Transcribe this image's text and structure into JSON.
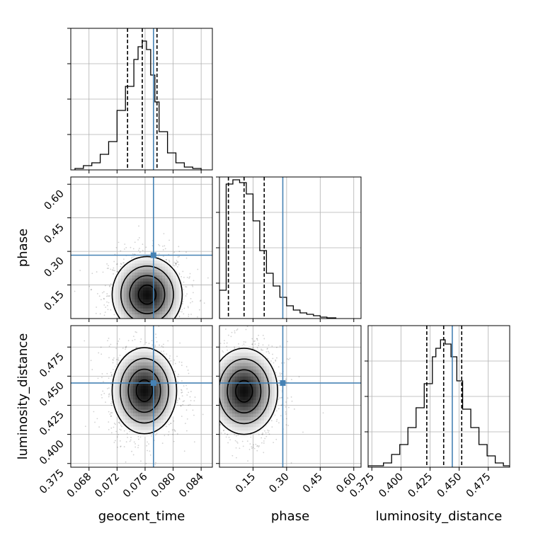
{
  "chart_data": {
    "type": "corner",
    "parameters": [
      "geocent_time",
      "phase",
      "luminosity_distance"
    ],
    "truths": {
      "geocent_time": 0.0772,
      "phase": 0.283,
      "luminosity_distance": 0.4441
    },
    "colors": {
      "truth": "#4682b4",
      "hist": "#000000",
      "grid": "#b0b0b0",
      "quantile": "#000000"
    },
    "grid": true,
    "panels": [
      {
        "id": "hist-geocent_time",
        "type": "histogram",
        "param": "geocent_time",
        "xlim": [
          0.0654,
          0.0856
        ],
        "ylim": [
          0,
          1
        ],
        "bin_edges": [
          0.066,
          0.0672,
          0.0684,
          0.0696,
          0.0708,
          0.072,
          0.0732,
          0.0744,
          0.075,
          0.0756,
          0.0762,
          0.0768,
          0.0774,
          0.078,
          0.0792,
          0.0804,
          0.0816,
          0.0828,
          0.084
        ],
        "heights": [
          0.01,
          0.03,
          0.05,
          0.11,
          0.2,
          0.42,
          0.59,
          0.78,
          0.87,
          0.91,
          0.85,
          0.67,
          0.48,
          0.27,
          0.12,
          0.05,
          0.02,
          0.01
        ],
        "quantiles": [
          0.0735,
          0.0756,
          0.0777
        ],
        "xticks": [
          0.068,
          0.072,
          0.076,
          0.08,
          0.084
        ],
        "yticks": [
          0.25,
          0.5,
          0.75,
          1.0
        ]
      },
      {
        "id": "hist-phase",
        "type": "histogram",
        "param": "phase",
        "xlim": [
          0.0,
          0.6324
        ],
        "ylim": [
          0,
          1
        ],
        "bin_edges": [
          0.0,
          0.03,
          0.06,
          0.09,
          0.12,
          0.15,
          0.18,
          0.21,
          0.24,
          0.27,
          0.3,
          0.33,
          0.36,
          0.39,
          0.42,
          0.45,
          0.48,
          0.52
        ],
        "heights": [
          0.2,
          0.95,
          0.98,
          0.96,
          0.88,
          0.69,
          0.48,
          0.32,
          0.23,
          0.15,
          0.09,
          0.06,
          0.04,
          0.03,
          0.02,
          0.01,
          0.005
        ],
        "quantiles": [
          0.04,
          0.11,
          0.2
        ],
        "xticks": [
          0.15,
          0.3,
          0.45,
          0.6
        ],
        "yticks": [
          0.25,
          0.5,
          0.75,
          1.0
        ]
      },
      {
        "id": "hist-luminosity_distance",
        "type": "histogram",
        "param": "luminosity_distance",
        "xlim": [
          0.3718,
          0.4934
        ],
        "ylim": [
          0,
          1
        ],
        "bin_edges": [
          0.3718,
          0.385,
          0.392,
          0.399,
          0.406,
          0.413,
          0.42,
          0.427,
          0.43,
          0.434,
          0.438,
          0.443,
          0.448,
          0.453,
          0.46,
          0.467,
          0.474,
          0.481,
          0.488,
          0.4934
        ],
        "heights": [
          0.01,
          0.03,
          0.09,
          0.16,
          0.28,
          0.42,
          0.59,
          0.78,
          0.84,
          0.9,
          0.87,
          0.78,
          0.61,
          0.41,
          0.28,
          0.16,
          0.08,
          0.03,
          0.01
        ],
        "quantiles": [
          0.4222,
          0.4367,
          0.4522
        ],
        "xticks": [
          0.375,
          0.4,
          0.425,
          0.45,
          0.475
        ],
        "yticks": [
          0.25,
          0.5,
          0.75
        ]
      },
      {
        "id": "density-geocent_time-phase",
        "type": "density2d",
        "xparam": "geocent_time",
        "yparam": "phase",
        "xlim": [
          0.0654,
          0.0856
        ],
        "ylim": [
          0.0,
          0.6324
        ],
        "center": [
          0.0763,
          0.107
        ],
        "spread": [
          0.0025,
          0.085
        ],
        "xticks": [
          0.068,
          0.072,
          0.076,
          0.08,
          0.084
        ],
        "yticks": [
          0.15,
          0.3,
          0.45,
          0.6
        ]
      },
      {
        "id": "density-geocent_time-luminosity_distance",
        "type": "density2d",
        "xparam": "geocent_time",
        "yparam": "luminosity_distance",
        "xlim": [
          0.0654,
          0.0856
        ],
        "ylim": [
          0.3718,
          0.4934
        ],
        "center": [
          0.0759,
          0.4375
        ],
        "spread": [
          0.0023,
          0.0185
        ],
        "xticks": [
          0.068,
          0.072,
          0.076,
          0.08,
          0.084
        ],
        "yticks": [
          0.375,
          0.4,
          0.425,
          0.45,
          0.475
        ]
      },
      {
        "id": "density-phase-luminosity_distance",
        "type": "density2d",
        "xparam": "phase",
        "yparam": "luminosity_distance",
        "xlim": [
          0.0,
          0.6324
        ],
        "ylim": [
          0.3718,
          0.4934
        ],
        "center": [
          0.11,
          0.437
        ],
        "spread": [
          0.075,
          0.0185
        ],
        "xticks": [
          0.15,
          0.3,
          0.45,
          0.6
        ],
        "yticks": [
          0.375,
          0.4,
          0.425,
          0.45,
          0.475
        ]
      }
    ],
    "axis_labels": {
      "x": [
        "geocent_time",
        "phase",
        "luminosity_distance"
      ],
      "y": [
        "phase",
        "luminosity_distance"
      ]
    },
    "tick_labels": {
      "geocent_time": [
        "0.068",
        "0.072",
        "0.076",
        "0.080",
        "0.084"
      ],
      "phase": [
        "0.15",
        "0.30",
        "0.45",
        "0.60"
      ],
      "luminosity_distance": [
        "0.375",
        "0.400",
        "0.425",
        "0.450",
        "0.475"
      ]
    }
  }
}
